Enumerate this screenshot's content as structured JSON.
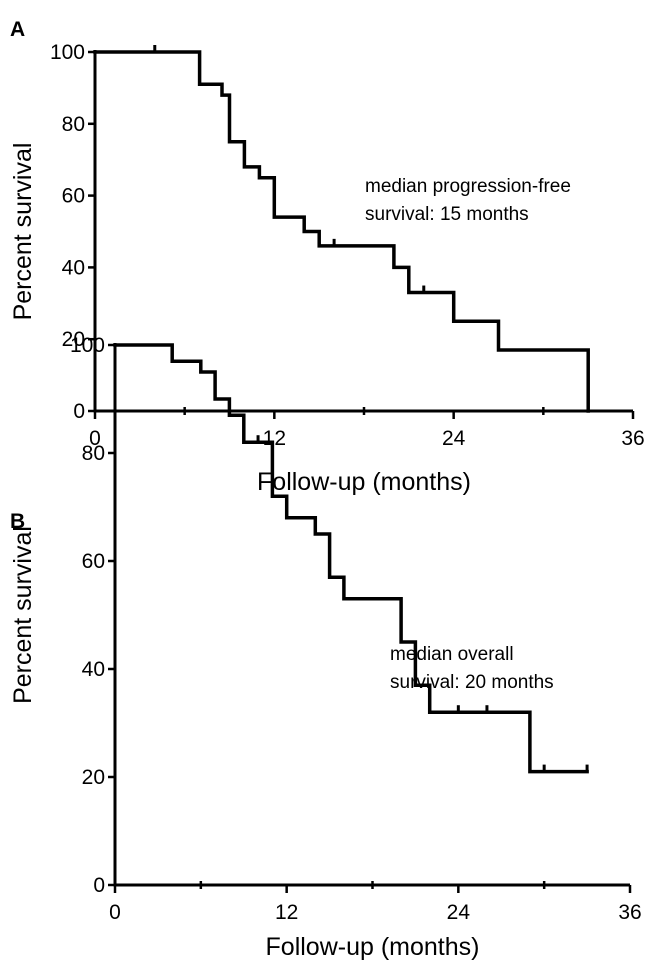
{
  "colors": {
    "line": "#000000",
    "background": "#ffffff"
  },
  "chart_data": [
    {
      "panel_label": "A",
      "type": "line",
      "step": true,
      "xlabel": "Follow-up (months)",
      "ylabel": "Percent survival",
      "xlim": [
        0,
        36
      ],
      "ylim": [
        0,
        100
      ],
      "xticks": [
        "0",
        "12",
        "24",
        "36"
      ],
      "yticks": [
        "0",
        "20",
        "40",
        "60",
        "80",
        "100"
      ],
      "annotation": [
        "median progression-free",
        "survival: 15 months"
      ],
      "series": [
        {
          "x": [
            0,
            7,
            7,
            8.5,
            8.5,
            9,
            9,
            10,
            10,
            11,
            11,
            12,
            12,
            14,
            14,
            15,
            15,
            20,
            20,
            21,
            21,
            24,
            24,
            27,
            27,
            33,
            33
          ],
          "y": [
            100,
            100,
            91,
            91,
            88,
            88,
            75,
            75,
            68,
            68,
            65,
            65,
            54,
            54,
            50,
            50,
            46,
            46,
            40,
            40,
            33,
            33,
            25,
            25,
            17,
            17,
            0
          ]
        }
      ],
      "censored": [
        {
          "x": 4,
          "y": 100
        },
        {
          "x": 16,
          "y": 46
        },
        {
          "x": 22,
          "y": 33
        }
      ]
    },
    {
      "panel_label": "B",
      "type": "line",
      "step": true,
      "xlabel": "Follow-up (months)",
      "ylabel": "Percent survival",
      "xlim": [
        0,
        36
      ],
      "ylim": [
        0,
        100
      ],
      "xticks": [
        "0",
        "12",
        "24",
        "36"
      ],
      "yticks": [
        "0",
        "20",
        "40",
        "60",
        "80",
        "100"
      ],
      "annotation": [
        "median overall",
        "survival: 20 months"
      ],
      "series": [
        {
          "x": [
            0,
            4,
            4,
            6,
            6,
            7,
            7,
            8,
            8,
            9,
            9,
            11,
            11,
            12,
            12,
            14,
            14,
            15,
            15,
            16,
            16,
            20,
            20,
            21,
            21,
            22,
            22,
            29,
            29,
            33
          ],
          "y": [
            100,
            100,
            97,
            97,
            95,
            95,
            90,
            90,
            87,
            87,
            82,
            82,
            72,
            72,
            68,
            68,
            65,
            65,
            57,
            57,
            53,
            53,
            45,
            45,
            37,
            37,
            32,
            32,
            21,
            21
          ]
        }
      ],
      "censored": [
        {
          "x": 10,
          "y": 82
        },
        {
          "x": 24,
          "y": 32
        },
        {
          "x": 26,
          "y": 32
        },
        {
          "x": 30,
          "y": 21
        },
        {
          "x": 33,
          "y": 21
        }
      ]
    }
  ]
}
